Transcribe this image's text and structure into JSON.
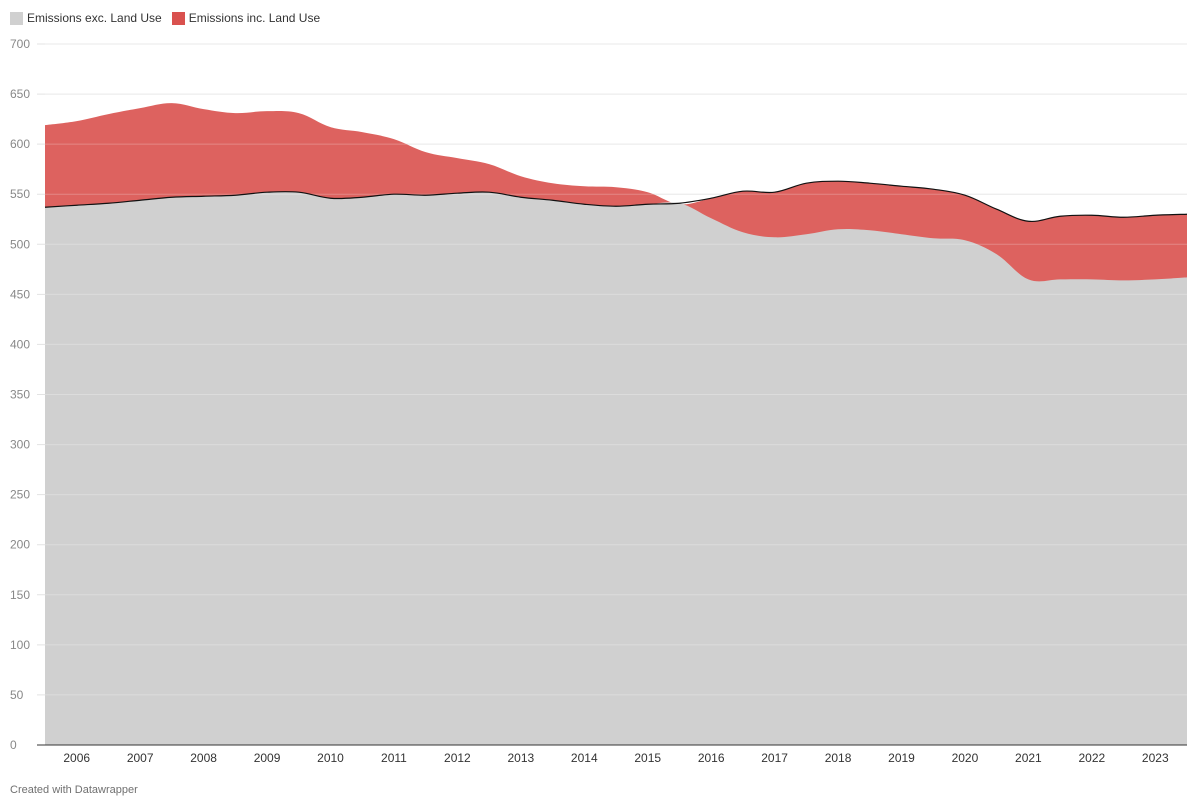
{
  "chart_data": {
    "type": "area",
    "title": "",
    "xlabel": "",
    "ylabel": "",
    "ylim": [
      0,
      700
    ],
    "xlim": [
      "2005-07",
      "2023-07"
    ],
    "y_ticks": [
      0,
      50,
      100,
      150,
      200,
      250,
      300,
      350,
      400,
      450,
      500,
      550,
      600,
      650,
      700
    ],
    "x_ticks": [
      "2006",
      "2007",
      "2008",
      "2009",
      "2010",
      "2011",
      "2012",
      "2013",
      "2014",
      "2015",
      "2016",
      "2017",
      "2018",
      "2019",
      "2020",
      "2021",
      "2022",
      "2023"
    ],
    "grid": "horizontal",
    "legend_position": "top-left",
    "series": [
      {
        "name": "Emissions exc. Land Use",
        "color": "#d0d0d0",
        "points": [
          [
            "2005-07",
            537
          ],
          [
            "2006-01",
            539
          ],
          [
            "2006-07",
            541
          ],
          [
            "2007-01",
            544
          ],
          [
            "2007-07",
            547
          ],
          [
            "2008-01",
            548
          ],
          [
            "2008-07",
            549
          ],
          [
            "2009-01",
            552
          ],
          [
            "2009-07",
            552
          ],
          [
            "2010-01",
            546
          ],
          [
            "2010-07",
            547
          ],
          [
            "2011-01",
            550
          ],
          [
            "2011-07",
            549
          ],
          [
            "2012-01",
            551
          ],
          [
            "2012-07",
            552
          ],
          [
            "2013-01",
            547
          ],
          [
            "2013-07",
            544
          ],
          [
            "2014-01",
            540
          ],
          [
            "2014-07",
            538
          ],
          [
            "2015-01",
            540
          ],
          [
            "2015-07",
            541
          ],
          [
            "2016-01",
            526
          ],
          [
            "2016-07",
            512
          ],
          [
            "2017-01",
            507
          ],
          [
            "2017-07",
            510
          ],
          [
            "2018-01",
            515
          ],
          [
            "2018-07",
            514
          ],
          [
            "2019-01",
            510
          ],
          [
            "2019-07",
            506
          ],
          [
            "2020-01",
            504
          ],
          [
            "2020-07",
            490
          ],
          [
            "2021-01",
            465
          ],
          [
            "2021-07",
            465
          ],
          [
            "2022-01",
            465
          ],
          [
            "2022-07",
            464
          ],
          [
            "2023-01",
            465
          ],
          [
            "2023-07",
            467
          ]
        ]
      },
      {
        "name": "Emissions inc. Land Use",
        "color": "#d9514e",
        "points": [
          [
            "2005-07",
            619
          ],
          [
            "2006-01",
            623
          ],
          [
            "2006-07",
            630
          ],
          [
            "2007-01",
            636
          ],
          [
            "2007-07",
            641
          ],
          [
            "2008-01",
            635
          ],
          [
            "2008-07",
            631
          ],
          [
            "2009-01",
            633
          ],
          [
            "2009-07",
            631
          ],
          [
            "2010-01",
            617
          ],
          [
            "2010-07",
            612
          ],
          [
            "2011-01",
            605
          ],
          [
            "2011-07",
            592
          ],
          [
            "2012-01",
            586
          ],
          [
            "2012-07",
            580
          ],
          [
            "2013-01",
            568
          ],
          [
            "2013-07",
            561
          ],
          [
            "2014-01",
            558
          ],
          [
            "2014-07",
            557
          ],
          [
            "2015-01",
            552
          ],
          [
            "2015-07",
            540
          ],
          [
            "2016-01",
            546
          ],
          [
            "2016-07",
            553
          ],
          [
            "2017-01",
            552
          ],
          [
            "2017-07",
            561
          ],
          [
            "2018-01",
            563
          ],
          [
            "2018-07",
            561
          ],
          [
            "2019-01",
            558
          ],
          [
            "2019-07",
            555
          ],
          [
            "2020-01",
            549
          ],
          [
            "2020-07",
            535
          ],
          [
            "2021-01",
            523
          ],
          [
            "2021-07",
            528
          ],
          [
            "2022-01",
            529
          ],
          [
            "2022-07",
            527
          ],
          [
            "2023-01",
            529
          ],
          [
            "2023-07",
            530
          ]
        ]
      }
    ]
  },
  "footer": {
    "credit": "Created with Datawrapper"
  }
}
